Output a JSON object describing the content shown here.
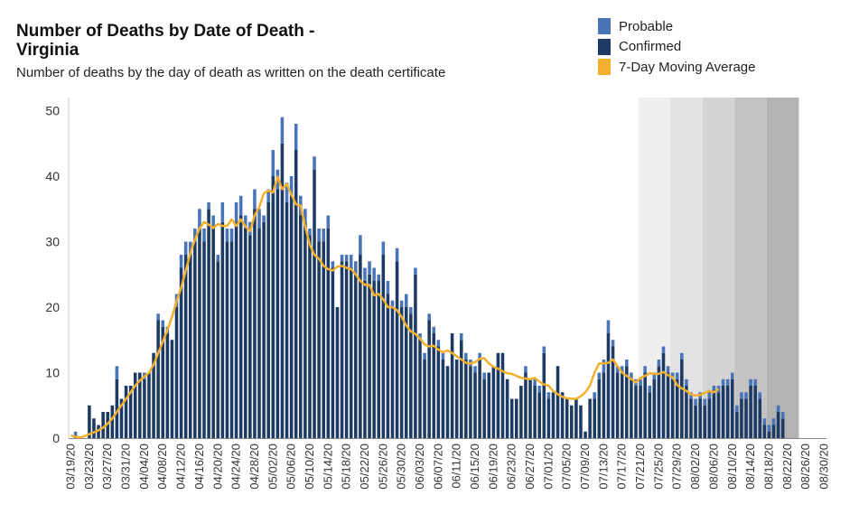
{
  "title": "Number of Deaths by Date of Death - Virginia",
  "subtitle": "Number of deaths by the day of death as written on the death certificate",
  "legend": [
    {
      "label": "Probable",
      "color": "#4a74b8"
    },
    {
      "label": "Confirmed",
      "color": "#1d3a64"
    },
    {
      "label": "7-Day Moving Average",
      "color": "#f2b02c"
    }
  ],
  "colors": {
    "probable": "#4a74b8",
    "confirmed": "#1d3a64",
    "average": "#f2b02c",
    "recent_shade": [
      "#efefef",
      "#e2e2e2",
      "#d4d4d4",
      "#c3c3c3",
      "#b3b3b3"
    ]
  },
  "chart_data": {
    "type": "bar",
    "x_start": "03/19/20",
    "x_end": "08/30/20",
    "x_tick_labels": [
      "03/19/20",
      "03/23/20",
      "03/27/20",
      "03/31/20",
      "04/04/20",
      "04/08/20",
      "04/12/20",
      "04/16/20",
      "04/20/20",
      "04/24/20",
      "04/28/20",
      "05/02/20",
      "05/06/20",
      "05/10/20",
      "05/14/20",
      "05/18/20",
      "05/22/20",
      "05/26/20",
      "05/30/20",
      "06/03/20",
      "06/07/20",
      "06/11/20",
      "06/15/20",
      "06/19/20",
      "06/23/20",
      "06/27/20",
      "07/01/20",
      "07/05/20",
      "07/09/20",
      "07/13/20",
      "07/17/20",
      "07/21/20",
      "07/25/20",
      "07/29/20",
      "08/02/20",
      "08/06/20",
      "08/10/20",
      "08/14/20",
      "08/18/20",
      "08/22/20",
      "08/26/20",
      "08/30/20"
    ],
    "y_ticks": [
      0,
      10,
      20,
      30,
      40,
      50
    ],
    "ylim": [
      0,
      52
    ],
    "series": [
      {
        "name": "Confirmed",
        "stacked": true,
        "values": [
          0,
          0,
          0,
          5,
          3,
          2,
          4,
          4,
          5,
          9,
          6,
          8,
          8,
          10,
          10,
          9,
          10,
          13,
          18,
          17,
          16,
          15,
          20,
          26,
          28,
          28,
          30,
          32,
          30,
          35,
          32,
          27,
          33,
          30,
          30,
          33,
          34,
          32,
          31,
          35,
          32,
          33,
          36,
          40,
          38,
          45,
          36,
          37,
          44,
          34,
          33,
          31,
          41,
          30,
          30,
          32,
          26,
          20,
          27,
          27,
          26,
          25,
          28,
          24,
          25,
          24,
          24,
          28,
          22,
          20,
          27,
          20,
          20,
          19,
          25,
          15,
          12,
          18,
          16,
          14,
          12,
          11,
          16,
          12,
          15,
          12,
          11,
          10,
          12,
          9,
          10,
          11,
          13,
          13,
          9,
          6,
          6,
          8,
          10,
          9,
          8,
          7,
          13,
          6,
          7,
          11,
          7,
          6,
          5,
          6,
          5,
          1,
          6,
          6,
          9,
          10,
          16,
          14,
          10,
          10,
          11,
          9,
          8,
          8,
          10,
          7,
          9,
          11,
          13,
          10,
          9,
          9,
          12,
          8,
          6,
          5,
          6,
          5,
          6,
          7,
          7,
          8,
          8,
          9,
          4,
          6,
          6,
          8,
          8,
          6,
          2,
          1,
          2,
          4,
          3
        ],
        "x_offset": 1
      },
      {
        "name": "Probable",
        "stacked": true,
        "values": [
          1,
          0,
          0,
          0,
          0,
          0,
          0,
          0,
          0,
          2,
          0,
          0,
          0,
          0,
          0,
          1,
          0,
          0,
          1,
          1,
          1,
          0,
          2,
          2,
          2,
          2,
          2,
          3,
          2,
          1,
          2,
          1,
          3,
          2,
          2,
          3,
          3,
          2,
          2,
          3,
          3,
          1,
          2,
          4,
          3,
          4,
          3,
          3,
          4,
          3,
          2,
          1,
          2,
          2,
          2,
          2,
          1,
          0,
          1,
          1,
          2,
          2,
          3,
          2,
          2,
          2,
          1,
          2,
          2,
          1,
          2,
          1,
          2,
          1,
          1,
          1,
          1,
          1,
          1,
          1,
          1,
          0,
          0,
          0,
          1,
          1,
          1,
          1,
          1,
          1,
          0,
          0,
          0,
          0,
          0,
          0,
          0,
          0,
          1,
          0,
          1,
          1,
          1,
          1,
          0,
          0,
          0,
          0,
          0,
          0,
          0,
          0,
          0,
          1,
          1,
          2,
          2,
          1,
          1,
          1,
          1,
          1,
          1,
          1,
          1,
          1,
          1,
          1,
          1,
          1,
          1,
          1,
          1,
          1,
          1,
          1,
          1,
          1,
          1,
          1,
          1,
          1,
          1,
          1,
          1,
          1,
          1,
          1,
          1,
          1,
          1,
          1,
          1,
          1,
          1
        ],
        "x_offset": 0
      },
      {
        "name": "7-Day Moving Average",
        "type": "line",
        "values": [
          0.4,
          0.2,
          0.1,
          0.3,
          0.6,
          0.9,
          1.2,
          1.6,
          2.2,
          3.0,
          4.0,
          5.0,
          6.0,
          7.0,
          8.0,
          8.8,
          9.4,
          10.0,
          11.2,
          13.0,
          14.7,
          16.5,
          18.5,
          20.9,
          23.0,
          25.6,
          28.2,
          30.3,
          32.0,
          33.0,
          32.6,
          32.1,
          32.7,
          32.4,
          32.4,
          33.4,
          32.4,
          33.4,
          32.3,
          31.6,
          34.0,
          35.3,
          37.4,
          37.8,
          37.5,
          39.9,
          38.0,
          38.8,
          37.2,
          35.7,
          35.5,
          32.3,
          29.5,
          28.0,
          27.4,
          26.3,
          25.8,
          25.6,
          26.2,
          26.3,
          26.0,
          25.8,
          25.0,
          24.0,
          23.4,
          23.4,
          21.8,
          22.0,
          21.2,
          20.0,
          20.0,
          19.5,
          18.5,
          17.2,
          16.3,
          15.9,
          15.2,
          14.3,
          14.0,
          14.1,
          13.5,
          13.1,
          13.4,
          13.0,
          12.5,
          12.0,
          11.5,
          11.4,
          11.6,
          12.1,
          12.2,
          11.4,
          10.9,
          10.6,
          10.2,
          9.9,
          9.8,
          9.5,
          9.2,
          9.1,
          9.0,
          9.2,
          8.6,
          8.2,
          8.0,
          7.2,
          6.7,
          6.3,
          6.1,
          6.0,
          6.0,
          6.4,
          7.0,
          8.0,
          10.0,
          11.4,
          11.4,
          11.5,
          12.0,
          11.0,
          10.0,
          9.5,
          9.0,
          8.5,
          9.2,
          9.5,
          9.9,
          9.8,
          9.8,
          10.1,
          9.6,
          9.3,
          8.1,
          7.6,
          7.2,
          6.7,
          6.5,
          6.6,
          6.9,
          7.2,
          7.0,
          7.5
        ]
      }
    ],
    "shaded_recent_period": {
      "from": "07/21/20",
      "to": "08/26/20"
    }
  }
}
